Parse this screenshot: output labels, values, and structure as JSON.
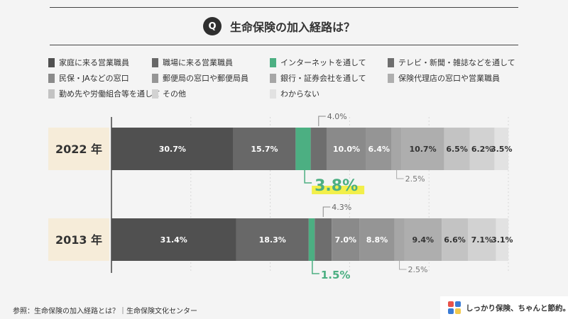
{
  "title": {
    "badge": "Q",
    "text": "生命保険の加入経路は？"
  },
  "source": "参照：生命保険の加入経路とは？｜生命保険文化センター",
  "logo": {
    "text": "しっかり保険、ちゃんと節約。",
    "icon": "logo-mark-icon"
  },
  "colors": {
    "accent": "#4caf82",
    "highlight": "#f2ef4a",
    "label_bg": "#f6ecd9"
  },
  "chart_data": {
    "type": "bar",
    "orientation": "horizontal-stacked",
    "categories": [
      "2022 年",
      "2013 年"
    ],
    "series": [
      {
        "name": "家庭に来る営業職員",
        "color": "#505050",
        "values": [
          30.7,
          31.4
        ]
      },
      {
        "name": "職場に来る営業職員",
        "color": "#686868",
        "values": [
          15.7,
          18.3
        ]
      },
      {
        "name": "インターネットを通して",
        "color": "#4caf82",
        "values": [
          3.8,
          1.5
        ]
      },
      {
        "name": "テレビ・新聞・雑誌などを通して",
        "color": "#6e6e6e",
        "values": [
          4.0,
          4.3
        ]
      },
      {
        "name": "民保・JAなどの窓口",
        "color": "#8a8a8a",
        "values": [
          10.0,
          7.0
        ]
      },
      {
        "name": "郵便局の窓口や郵便局員",
        "color": "#959595",
        "values": [
          6.4,
          8.8
        ]
      },
      {
        "name": "銀行・証券会社を通して",
        "color": "#a6a6a6",
        "values": [
          2.5,
          2.5
        ]
      },
      {
        "name": "保険代理店の窓口や営業職員",
        "color": "#aeaeae",
        "values": [
          10.7,
          9.4
        ]
      },
      {
        "name": "勤め先や労働組合等を通して",
        "color": "#c3c3c3",
        "values": [
          6.5,
          6.6
        ]
      },
      {
        "name": "その他",
        "color": "#d2d2d2",
        "values": [
          6.2,
          7.1
        ]
      },
      {
        "name": "わからない",
        "color": "#e2e2e2",
        "values": [
          3.5,
          3.1
        ]
      }
    ],
    "value_labels": {
      "2022 年": [
        "30.7%",
        "15.7%",
        "3.8%",
        "4.0%",
        "10.0%",
        "6.4%",
        "2.5%",
        "10.7%",
        "6.5%",
        "6.2%",
        "3.5%"
      ],
      "2013 年": [
        "31.4%",
        "18.3%",
        "1.5%",
        "4.3%",
        "7.0%",
        "8.8%",
        "2.5%",
        "9.4%",
        "6.6%",
        "7.1%",
        "3.1%"
      ]
    },
    "xlim": [
      0,
      100
    ],
    "legend_position": "top",
    "grid": true
  }
}
